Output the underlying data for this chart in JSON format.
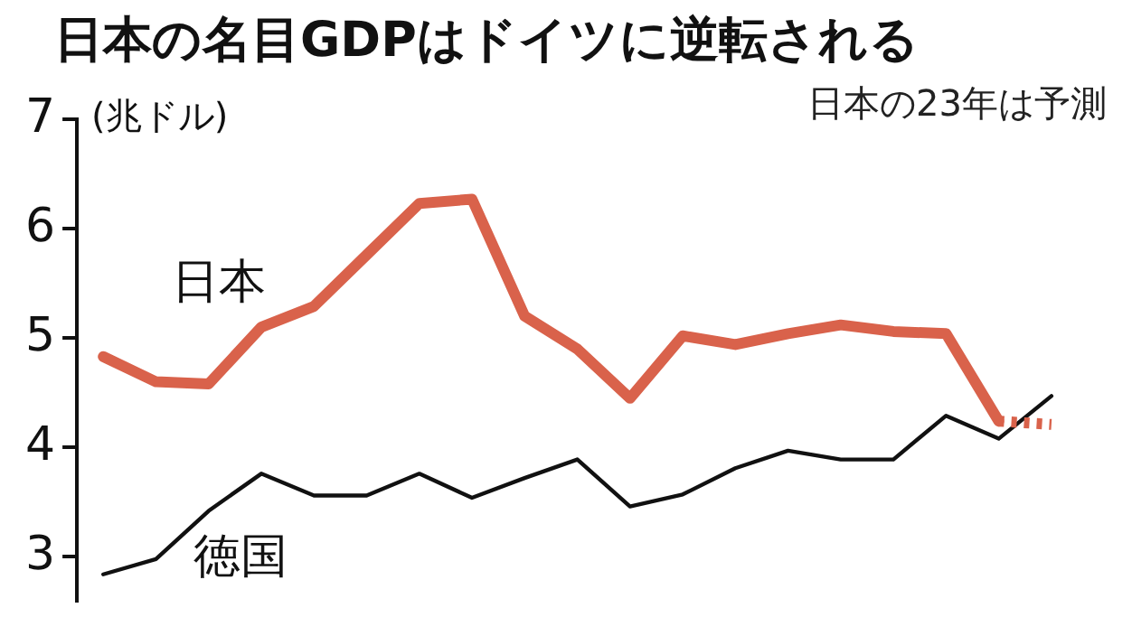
{
  "chart_data": {
    "type": "line",
    "title": "日本の名目GDPはドイツに逆転される",
    "subtitle": "日本の23年は予測",
    "ylabel": "(兆ドル)",
    "categories": [
      null,
      null,
      null,
      null,
      null,
      null,
      null,
      null,
      null,
      null,
      null,
      null,
      null,
      null,
      null,
      null,
      null,
      null,
      null
    ],
    "series": [
      {
        "name": "日本",
        "color": "#d9624b",
        "values": [
          4.83,
          4.6,
          4.58,
          5.1,
          5.29,
          5.76,
          6.23,
          6.27,
          5.2,
          4.9,
          4.45,
          5.02,
          4.94,
          5.04,
          5.12,
          5.06,
          5.04,
          4.24,
          null
        ]
      },
      {
        "color": "#d9624b",
        "line_style": "dotted",
        "values": [
          null,
          null,
          null,
          null,
          null,
          null,
          null,
          null,
          null,
          null,
          null,
          null,
          null,
          null,
          null,
          null,
          null,
          4.24,
          4.21
        ]
      },
      {
        "name": "徳国",
        "color": "#111111",
        "values": [
          2.84,
          2.98,
          3.42,
          3.76,
          3.56,
          3.56,
          3.76,
          3.54,
          3.72,
          3.89,
          3.46,
          3.57,
          3.81,
          3.97,
          3.89,
          3.89,
          4.29,
          4.08,
          4.47
        ]
      }
    ],
    "ylim": [
      2.6,
      7
    ],
    "yticks": [
      3,
      4,
      5,
      6,
      7
    ],
    "tick_labels": "y",
    "grid": false,
    "legend": false,
    "marker": "none"
  }
}
